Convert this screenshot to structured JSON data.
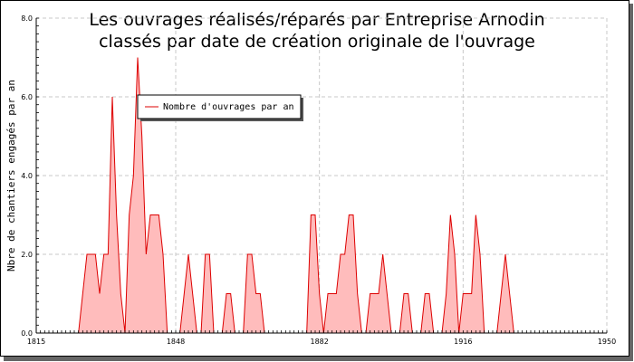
{
  "chart_data": {
    "type": "area",
    "title_lines": [
      "Les ouvrages réalisés/réparés par Entreprise Arnodin",
      "classés par date de création originale de l'ouvrage"
    ],
    "xlabel": "",
    "ylabel": "Nbre de chantiers engagés par an",
    "xlim": [
      1815,
      1950
    ],
    "ylim": [
      0,
      8
    ],
    "x_ticks": [
      "1815",
      "1848",
      "1882",
      "1916",
      "1950"
    ],
    "y_ticks": [
      "0.0",
      "2.0",
      "4.0",
      "6.0",
      "8.0"
    ],
    "grid": true,
    "legend_position": "top-left",
    "series": [
      {
        "name": "Nombre d'ouvrages par an",
        "color": "#dd0000",
        "fill": "#ffbcbc",
        "points": [
          [
            1825,
            0
          ],
          [
            1827,
            2
          ],
          [
            1828,
            2
          ],
          [
            1829,
            2
          ],
          [
            1830,
            1
          ],
          [
            1831,
            2
          ],
          [
            1832,
            2
          ],
          [
            1833,
            6
          ],
          [
            1834,
            3
          ],
          [
            1835,
            1
          ],
          [
            1836,
            0
          ],
          [
            1837,
            3
          ],
          [
            1838,
            4
          ],
          [
            1839,
            7
          ],
          [
            1840,
            5
          ],
          [
            1841,
            2
          ],
          [
            1842,
            3
          ],
          [
            1843,
            3
          ],
          [
            1844,
            3
          ],
          [
            1845,
            2
          ],
          [
            1846,
            0
          ],
          [
            1849,
            0
          ],
          [
            1850,
            1
          ],
          [
            1851,
            2
          ],
          [
            1852,
            1
          ],
          [
            1853,
            0
          ],
          [
            1854,
            0
          ],
          [
            1855,
            2
          ],
          [
            1856,
            2
          ],
          [
            1857,
            0
          ],
          [
            1859,
            0
          ],
          [
            1860,
            1
          ],
          [
            1861,
            1
          ],
          [
            1862,
            0
          ],
          [
            1864,
            0
          ],
          [
            1865,
            2
          ],
          [
            1866,
            2
          ],
          [
            1867,
            1
          ],
          [
            1868,
            1
          ],
          [
            1869,
            0
          ],
          [
            1879,
            0
          ],
          [
            1880,
            3
          ],
          [
            1881,
            3
          ],
          [
            1882,
            1
          ],
          [
            1883,
            0
          ],
          [
            1884,
            1
          ],
          [
            1885,
            1
          ],
          [
            1886,
            1
          ],
          [
            1887,
            2
          ],
          [
            1888,
            2
          ],
          [
            1889,
            3
          ],
          [
            1890,
            3
          ],
          [
            1891,
            1
          ],
          [
            1892,
            0
          ],
          [
            1893,
            0
          ],
          [
            1894,
            1
          ],
          [
            1895,
            1
          ],
          [
            1896,
            1
          ],
          [
            1897,
            2
          ],
          [
            1898,
            1
          ],
          [
            1899,
            0
          ],
          [
            1901,
            0
          ],
          [
            1902,
            1
          ],
          [
            1903,
            1
          ],
          [
            1904,
            0
          ],
          [
            1906,
            0
          ],
          [
            1907,
            1
          ],
          [
            1908,
            1
          ],
          [
            1909,
            0
          ],
          [
            1911,
            0
          ],
          [
            1912,
            1
          ],
          [
            1913,
            3
          ],
          [
            1914,
            2
          ],
          [
            1915,
            0
          ],
          [
            1916,
            1
          ],
          [
            1917,
            1
          ],
          [
            1918,
            1
          ],
          [
            1919,
            3
          ],
          [
            1920,
            2
          ],
          [
            1921,
            0
          ],
          [
            1924,
            0
          ],
          [
            1926,
            2
          ],
          [
            1927,
            1
          ],
          [
            1928,
            0
          ]
        ]
      }
    ]
  }
}
